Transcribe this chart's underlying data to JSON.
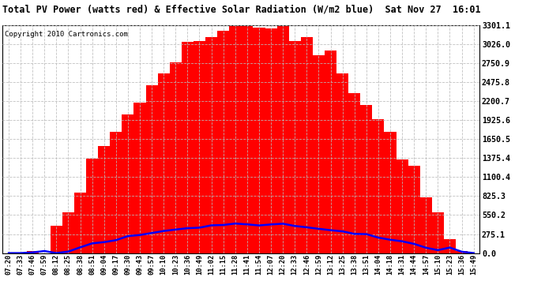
{
  "title": "Total PV Power (watts red) & Effective Solar Radiation (W/m2 blue)  Sat Nov 27  16:01",
  "copyright_text": "Copyright 2010 Cartronics.com",
  "background_color": "#ffffff",
  "plot_bg_color": "#ffffff",
  "grid_color": "#bbbbbb",
  "fill_color": "#ff0000",
  "line_color_pv": "#ff0000",
  "line_color_solar": "#0000ff",
  "ylim_max": 3301.1,
  "ylim_min": 0.0,
  "yticks": [
    0.0,
    275.1,
    550.2,
    825.3,
    1100.4,
    1375.4,
    1650.5,
    1925.6,
    2200.7,
    2475.8,
    2750.9,
    3026.0,
    3301.1
  ],
  "time_labels": [
    "07:20",
    "07:33",
    "07:46",
    "07:59",
    "08:12",
    "08:25",
    "08:38",
    "08:51",
    "09:04",
    "09:17",
    "09:30",
    "09:43",
    "09:57",
    "10:10",
    "10:23",
    "10:36",
    "10:49",
    "11:02",
    "11:15",
    "11:28",
    "11:41",
    "11:54",
    "12:07",
    "12:20",
    "12:33",
    "12:46",
    "12:59",
    "13:12",
    "13:25",
    "13:38",
    "13:51",
    "14:04",
    "14:18",
    "14:31",
    "14:44",
    "14:57",
    "15:10",
    "15:23",
    "15:36",
    "15:49"
  ],
  "n_points": 40,
  "solar_max": 420,
  "pv_max": 3250
}
